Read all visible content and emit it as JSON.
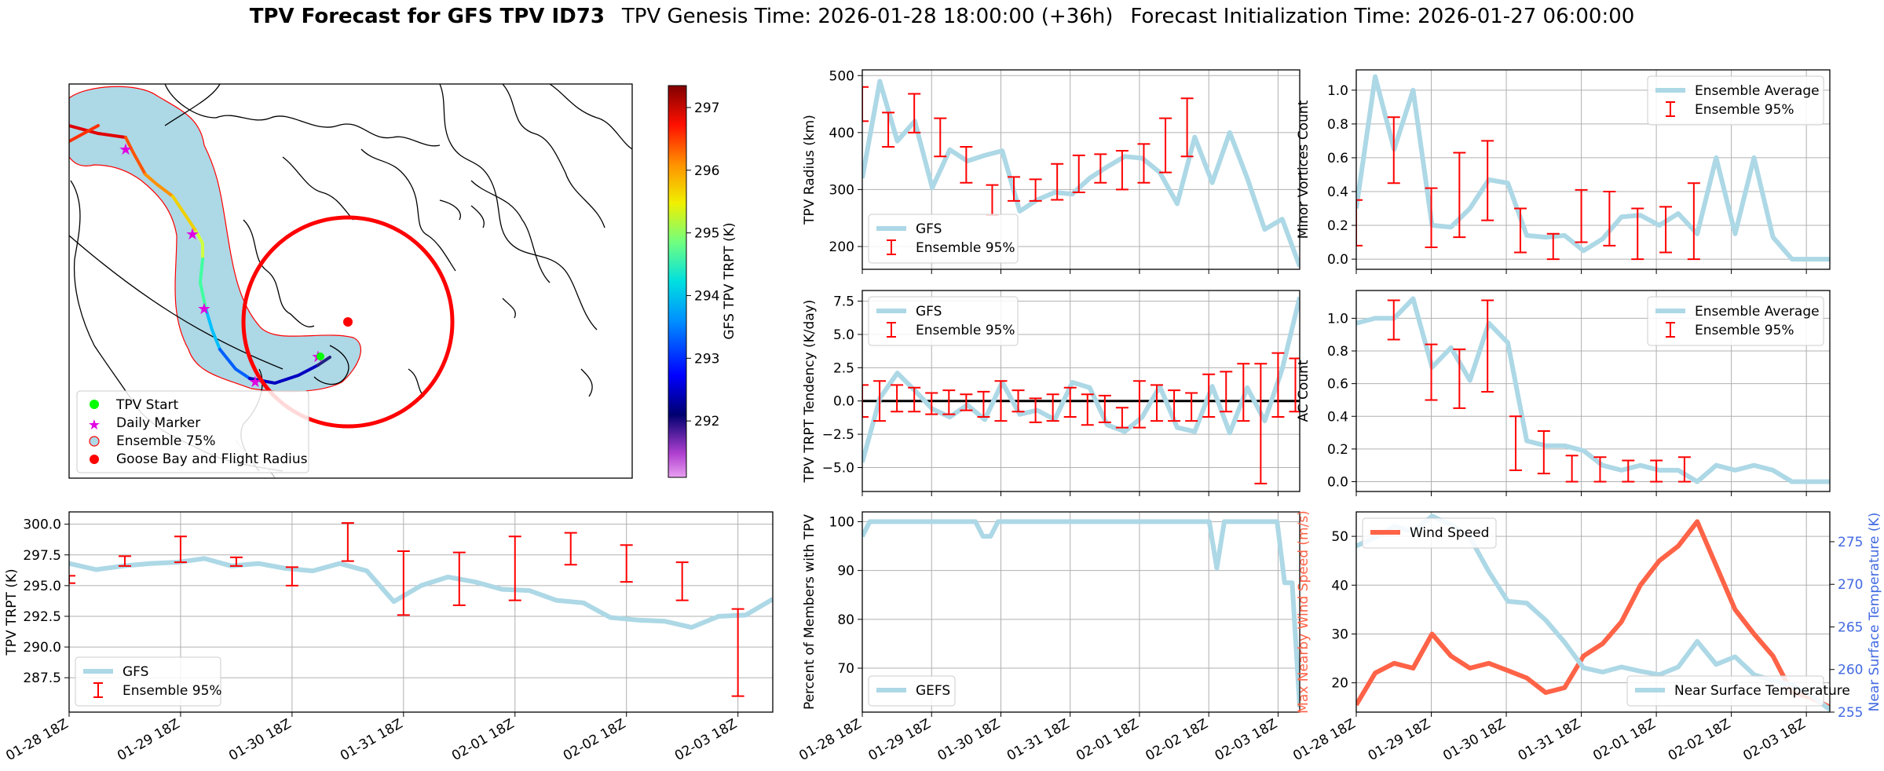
{
  "title": {
    "bold": "TPV Forecast for GFS TPV ID73",
    "genesis": "TPV Genesis Time: 2026-01-28 18:00:00 (+36h)",
    "init": "Forecast Initialization Time: 2026-01-27 06:00:00"
  },
  "colors": {
    "gfs_line": "#add8e6",
    "ensemble": "#ff0000",
    "wind": "#ff6347",
    "temp_axis": "#4169e1",
    "map_water_buffer": "#add8e6"
  },
  "map": {
    "colorbar_label": "GFS TPV TRPT (K)",
    "colorbar_ticks": [
      292,
      293,
      294,
      295,
      296,
      297
    ],
    "colorbar_range": [
      291.1,
      297.35
    ],
    "legend": [
      "TPV Start",
      "Daily Marker",
      "Ensemble 75%",
      "Goose Bay and Flight Radius"
    ]
  },
  "chart_data": [
    {
      "id": "radius",
      "type": "line",
      "title": "",
      "ylabel": "TPV Radius (km)",
      "xlabel": "",
      "xlim": [
        0,
        25.25
      ],
      "ylim": [
        160,
        510
      ],
      "yticks": [
        200,
        300,
        400,
        500
      ],
      "ytick_labels": [
        "200",
        "300",
        "400",
        "500"
      ],
      "xticks": [
        0,
        4,
        8,
        12,
        16,
        20,
        24
      ],
      "legend": [
        "GFS",
        "Ensemble 95%"
      ],
      "legend_pos": "lower-left",
      "series": [
        {
          "name": "GFS",
          "values": [
            320,
            490,
            385,
            420,
            303,
            370,
            350,
            360,
            368,
            262,
            282,
            295,
            292,
            320,
            340,
            358,
            355,
            330,
            275,
            392,
            312,
            400,
            320,
            230,
            248,
            165
          ]
        }
      ],
      "errorbars": [
        {
          "x": 0,
          "lo": 420,
          "hi": 480
        },
        {
          "x": 1.5,
          "lo": 375,
          "hi": 435
        },
        {
          "x": 3,
          "lo": 400,
          "hi": 468
        },
        {
          "x": 4.5,
          "lo": 358,
          "hi": 425
        },
        {
          "x": 6,
          "lo": 312,
          "hi": 375
        },
        {
          "x": 7.5,
          "lo": 255,
          "hi": 308
        },
        {
          "x": 8.75,
          "lo": 280,
          "hi": 322
        },
        {
          "x": 10,
          "lo": 280,
          "hi": 318
        },
        {
          "x": 11.25,
          "lo": 282,
          "hi": 345
        },
        {
          "x": 12.5,
          "lo": 295,
          "hi": 360
        },
        {
          "x": 13.75,
          "lo": 312,
          "hi": 362
        },
        {
          "x": 15,
          "lo": 300,
          "hi": 368
        },
        {
          "x": 16.25,
          "lo": 312,
          "hi": 380
        },
        {
          "x": 17.5,
          "lo": 330,
          "hi": 425
        },
        {
          "x": 18.75,
          "lo": 358,
          "hi": 460
        }
      ]
    },
    {
      "id": "tendency",
      "type": "line",
      "title": "",
      "ylabel": "TPV TRPT Tendency (K/day)",
      "xlabel": "",
      "xlim": [
        0,
        25.25
      ],
      "ylim": [
        -6.8,
        8.3
      ],
      "yticks": [
        -5,
        -2.5,
        0,
        2.5,
        5,
        7.5
      ],
      "ytick_labels": [
        "−5.0",
        "−2.5",
        "0.0",
        "2.5",
        "5.0",
        "7.5"
      ],
      "xticks": [
        0,
        4,
        8,
        12,
        16,
        20,
        24
      ],
      "legend": [
        "GFS",
        "Ensemble 95%"
      ],
      "legend_pos": "upper-left",
      "series": [
        {
          "name": "GFS",
          "values": [
            -4.6,
            0.2,
            2.1,
            0.8,
            -0.6,
            -1.2,
            -0.3,
            -1.4,
            1.4,
            -1.0,
            -0.7,
            -1.4,
            1.4,
            1.0,
            -1.8,
            -2.3,
            -1.2,
            1.1,
            -2.0,
            -2.3,
            1.1,
            -2.4,
            1.0,
            -1.5,
            2.4,
            7.8
          ]
        }
      ],
      "errorbars": [
        {
          "x": 0,
          "lo": -1.2,
          "hi": 1.2
        },
        {
          "x": 1,
          "lo": -1.5,
          "hi": 1.5
        },
        {
          "x": 2,
          "lo": -0.8,
          "hi": 1.2
        },
        {
          "x": 3,
          "lo": -0.8,
          "hi": 1.0
        },
        {
          "x": 4,
          "lo": -1.0,
          "hi": 0.6
        },
        {
          "x": 5,
          "lo": -1.0,
          "hi": 0.8
        },
        {
          "x": 6,
          "lo": -0.7,
          "hi": 0.5
        },
        {
          "x": 7,
          "lo": -1.2,
          "hi": 0.7
        },
        {
          "x": 8,
          "lo": -1.5,
          "hi": 1.5
        },
        {
          "x": 9,
          "lo": -0.8,
          "hi": 0.8
        },
        {
          "x": 10,
          "lo": -1.6,
          "hi": 0.2
        },
        {
          "x": 11,
          "lo": -1.5,
          "hi": 0.5
        },
        {
          "x": 12,
          "lo": -1.2,
          "hi": 1.0
        },
        {
          "x": 13,
          "lo": -1.8,
          "hi": 0.5
        },
        {
          "x": 14,
          "lo": -1.6,
          "hi": 0.4
        },
        {
          "x": 15,
          "lo": -2.0,
          "hi": -0.5
        },
        {
          "x": 16,
          "lo": -2.0,
          "hi": 1.5
        },
        {
          "x": 17,
          "lo": -1.5,
          "hi": 1.2
        },
        {
          "x": 18,
          "lo": -1.5,
          "hi": 0.8
        },
        {
          "x": 19,
          "lo": -1.5,
          "hi": 0.6
        },
        {
          "x": 20,
          "lo": -1.2,
          "hi": 2.0
        },
        {
          "x": 21,
          "lo": -0.8,
          "hi": 2.2
        },
        {
          "x": 22,
          "lo": -1.5,
          "hi": 2.8
        },
        {
          "x": 23,
          "lo": -6.2,
          "hi": 2.8
        },
        {
          "x": 24,
          "lo": -1.2,
          "hi": 3.6
        },
        {
          "x": 25,
          "lo": -0.8,
          "hi": 3.2
        }
      ]
    },
    {
      "id": "minor_vortices",
      "type": "line",
      "title": "",
      "ylabel": "Minor Vortices Count",
      "xlabel": "",
      "xlim": [
        0,
        25.25
      ],
      "ylim": [
        -0.06,
        1.12
      ],
      "yticks": [
        0,
        0.2,
        0.4,
        0.6,
        0.8,
        1.0
      ],
      "ytick_labels": [
        "0.0",
        "0.2",
        "0.4",
        "0.6",
        "0.8",
        "1.0"
      ],
      "xticks": [
        0,
        4,
        8,
        12,
        16,
        20,
        24
      ],
      "legend": [
        "Ensemble Average",
        "Ensemble 95%"
      ],
      "legend_pos": "upper-right",
      "series": [
        {
          "name": "Ensemble Average",
          "values": [
            0.3,
            1.08,
            0.65,
            1.0,
            0.2,
            0.19,
            0.3,
            0.47,
            0.45,
            0.14,
            0.13,
            0.14,
            0.05,
            0.12,
            0.25,
            0.26,
            0.2,
            0.27,
            0.15,
            0.6,
            0.15,
            0.6,
            0.13,
            0.0,
            0.0,
            0.0
          ]
        }
      ],
      "errorbars": [
        {
          "x": 0,
          "lo": 0.08,
          "hi": 0.35
        },
        {
          "x": 2,
          "lo": 0.45,
          "hi": 0.84
        },
        {
          "x": 4,
          "lo": 0.07,
          "hi": 0.42
        },
        {
          "x": 5.5,
          "lo": 0.13,
          "hi": 0.63
        },
        {
          "x": 7,
          "lo": 0.23,
          "hi": 0.7
        },
        {
          "x": 8.75,
          "lo": 0.04,
          "hi": 0.3
        },
        {
          "x": 10.5,
          "lo": 0.0,
          "hi": 0.15
        },
        {
          "x": 12,
          "lo": 0.1,
          "hi": 0.41
        },
        {
          "x": 13.5,
          "lo": 0.08,
          "hi": 0.4
        },
        {
          "x": 15,
          "lo": 0.0,
          "hi": 0.3
        },
        {
          "x": 16.5,
          "lo": 0.04,
          "hi": 0.31
        },
        {
          "x": 18,
          "lo": 0.0,
          "hi": 0.45
        }
      ]
    },
    {
      "id": "ac_count",
      "type": "line",
      "title": "",
      "ylabel": "AC Count",
      "xlabel": "",
      "xlim": [
        0,
        25.25
      ],
      "ylim": [
        -0.06,
        1.17
      ],
      "yticks": [
        0,
        0.2,
        0.4,
        0.6,
        0.8,
        1.0
      ],
      "ytick_labels": [
        "0.0",
        "0.2",
        "0.4",
        "0.6",
        "0.8",
        "1.0"
      ],
      "xticks": [
        0,
        4,
        8,
        12,
        16,
        20,
        24
      ],
      "legend": [
        "Ensemble Average",
        "Ensemble 95%"
      ],
      "legend_pos": "upper-right",
      "series": [
        {
          "name": "Ensemble Average",
          "values": [
            0.97,
            1.0,
            1.0,
            1.12,
            0.7,
            0.82,
            0.62,
            0.97,
            0.85,
            0.25,
            0.22,
            0.22,
            0.19,
            0.1,
            0.07,
            0.1,
            0.07,
            0.07,
            0.0,
            0.1,
            0.07,
            0.1,
            0.07,
            0.0,
            0.0,
            0.0
          ]
        }
      ],
      "errorbars": [
        {
          "x": 2,
          "lo": 0.87,
          "hi": 1.11
        },
        {
          "x": 4,
          "lo": 0.5,
          "hi": 0.84
        },
        {
          "x": 5.5,
          "lo": 0.45,
          "hi": 0.81
        },
        {
          "x": 7,
          "lo": 0.55,
          "hi": 1.11
        },
        {
          "x": 8.5,
          "lo": 0.07,
          "hi": 0.4
        },
        {
          "x": 10,
          "lo": 0.05,
          "hi": 0.31
        },
        {
          "x": 11.5,
          "lo": 0.0,
          "hi": 0.16
        },
        {
          "x": 13,
          "lo": 0.0,
          "hi": 0.15
        },
        {
          "x": 14.5,
          "lo": 0.0,
          "hi": 0.13
        },
        {
          "x": 16,
          "lo": 0.0,
          "hi": 0.13
        },
        {
          "x": 17.5,
          "lo": 0.0,
          "hi": 0.15
        }
      ]
    },
    {
      "id": "trpt",
      "type": "line",
      "title": "",
      "ylabel": "TPV TRPT (K)",
      "xlabel": "",
      "xlim": [
        0,
        25.25
      ],
      "ylim": [
        284.7,
        301.0
      ],
      "yticks": [
        287.5,
        290.0,
        292.5,
        295.0,
        297.5,
        300.0
      ],
      "ytick_labels": [
        "287.5",
        "290.0",
        "292.5",
        "295.0",
        "297.5",
        "300.0"
      ],
      "xticks": [
        0,
        4,
        8,
        12,
        16,
        20,
        24
      ],
      "xtick_labels": [
        "01-28 18Z",
        "01-29 18Z",
        "01-30 18Z",
        "01-31 18Z",
        "02-01 18Z",
        "02-02 18Z",
        "02-03 18Z"
      ],
      "legend": [
        "GFS",
        "Ensemble 95%"
      ],
      "legend_pos": "lower-left",
      "series": [
        {
          "name": "GFS",
          "values": [
            296.8,
            296.3,
            296.6,
            296.8,
            296.9,
            297.2,
            296.6,
            296.8,
            296.4,
            296.2,
            296.8,
            296.2,
            293.7,
            295.0,
            295.7,
            295.3,
            294.7,
            294.6,
            293.8,
            293.6,
            292.4,
            292.2,
            292.1,
            291.6,
            292.5,
            292.6,
            293.9
          ]
        }
      ],
      "errorbars": [
        {
          "x": 0,
          "lo": 295.2,
          "hi": 295.8
        },
        {
          "x": 2,
          "lo": 296.6,
          "hi": 297.4
        },
        {
          "x": 4,
          "lo": 296.9,
          "hi": 299.0
        },
        {
          "x": 6,
          "lo": 296.6,
          "hi": 297.3
        },
        {
          "x": 8,
          "lo": 295.0,
          "hi": 296.5
        },
        {
          "x": 10,
          "lo": 297.0,
          "hi": 300.1
        },
        {
          "x": 12,
          "lo": 292.6,
          "hi": 297.8
        },
        {
          "x": 14,
          "lo": 293.4,
          "hi": 297.7
        },
        {
          "x": 16,
          "lo": 293.8,
          "hi": 299.0
        },
        {
          "x": 18,
          "lo": 296.7,
          "hi": 299.3
        },
        {
          "x": 20,
          "lo": 295.3,
          "hi": 298.3
        },
        {
          "x": 22,
          "lo": 293.8,
          "hi": 296.9
        },
        {
          "x": 24,
          "lo": 286.0,
          "hi": 293.1
        }
      ]
    },
    {
      "id": "percent_members",
      "type": "line",
      "title": "",
      "ylabel": "Percent of Members with TPV",
      "xlabel": "",
      "xlim": [
        0,
        25.25
      ],
      "ylim": [
        61,
        102
      ],
      "yticks": [
        70,
        80,
        90,
        100
      ],
      "ytick_labels": [
        "70",
        "80",
        "90",
        "100"
      ],
      "xticks": [
        0,
        4,
        8,
        12,
        16,
        20,
        24
      ],
      "xtick_labels": [
        "01-28 18Z",
        "01-29 18Z",
        "01-30 18Z",
        "01-31 18Z",
        "02-01 18Z",
        "02-02 18Z",
        "02-03 18Z"
      ],
      "legend": [
        "GEFS"
      ],
      "legend_pos": "lower-left",
      "series": [
        {
          "name": "GEFS",
          "values": [
            97,
            100,
            100,
            100,
            100,
            100,
            100,
            100,
            100,
            100,
            100,
            100,
            100,
            100,
            100,
            100,
            97,
            97,
            100,
            100,
            100,
            100,
            100,
            100,
            100,
            100,
            100,
            100,
            100,
            100,
            100,
            100,
            100,
            100,
            100,
            100,
            100,
            100,
            100,
            100,
            100,
            100,
            100,
            100,
            100,
            100,
            100,
            90.5,
            100,
            100,
            100,
            100,
            100,
            100,
            100,
            100,
            87.5,
            87.5,
            62
          ]
        }
      ],
      "errorbars": []
    },
    {
      "id": "wind_temp",
      "type": "line",
      "title": "",
      "ylabel": "Max Nearby Wind Speed (m/s)",
      "y2label": "Near Surface Temperature (K)",
      "xlabel": "",
      "xlim": [
        0,
        25.25
      ],
      "ylim": [
        14,
        55
      ],
      "y2lim": [
        255,
        278.5
      ],
      "yticks": [
        20,
        30,
        40,
        50
      ],
      "ytick_labels": [
        "20",
        "30",
        "40",
        "50"
      ],
      "y2ticks": [
        255,
        260,
        265,
        270,
        275
      ],
      "y2tick_labels": [
        "255",
        "260",
        "265",
        "270",
        "275"
      ],
      "xticks": [
        0,
        4,
        8,
        12,
        16,
        20,
        24
      ],
      "xtick_labels": [
        "01-28 18Z",
        "01-29 18Z",
        "01-30 18Z",
        "01-31 18Z",
        "02-01 18Z",
        "02-02 18Z",
        "02-03 18Z"
      ],
      "legend": [
        "Wind Speed",
        "Near Surface Temperature"
      ],
      "legend_pos": "upper-left / lower-right",
      "series": [
        {
          "name": "Wind Speed",
          "axis": "left",
          "values": [
            15.5,
            22,
            24,
            23,
            30,
            25.5,
            23,
            24,
            22.5,
            21,
            18,
            19,
            25.5,
            28,
            32.5,
            40,
            45,
            48,
            53,
            44,
            35,
            30,
            25.5,
            18,
            17,
            15
          ]
        },
        {
          "name": "Near Surface Temperature",
          "axis": "right",
          "values": [
            274.5,
            275.5,
            276.8,
            276.2,
            278.0,
            277.0,
            275.5,
            271.5,
            268.0,
            267.8,
            265.8,
            263.2,
            260.2,
            259.7,
            260.3,
            259.8,
            259.4,
            260.3,
            263.3,
            260.6,
            261.5,
            259.4,
            258.7,
            258.2,
            257.0,
            255.3
          ]
        }
      ],
      "errorbars": []
    }
  ]
}
